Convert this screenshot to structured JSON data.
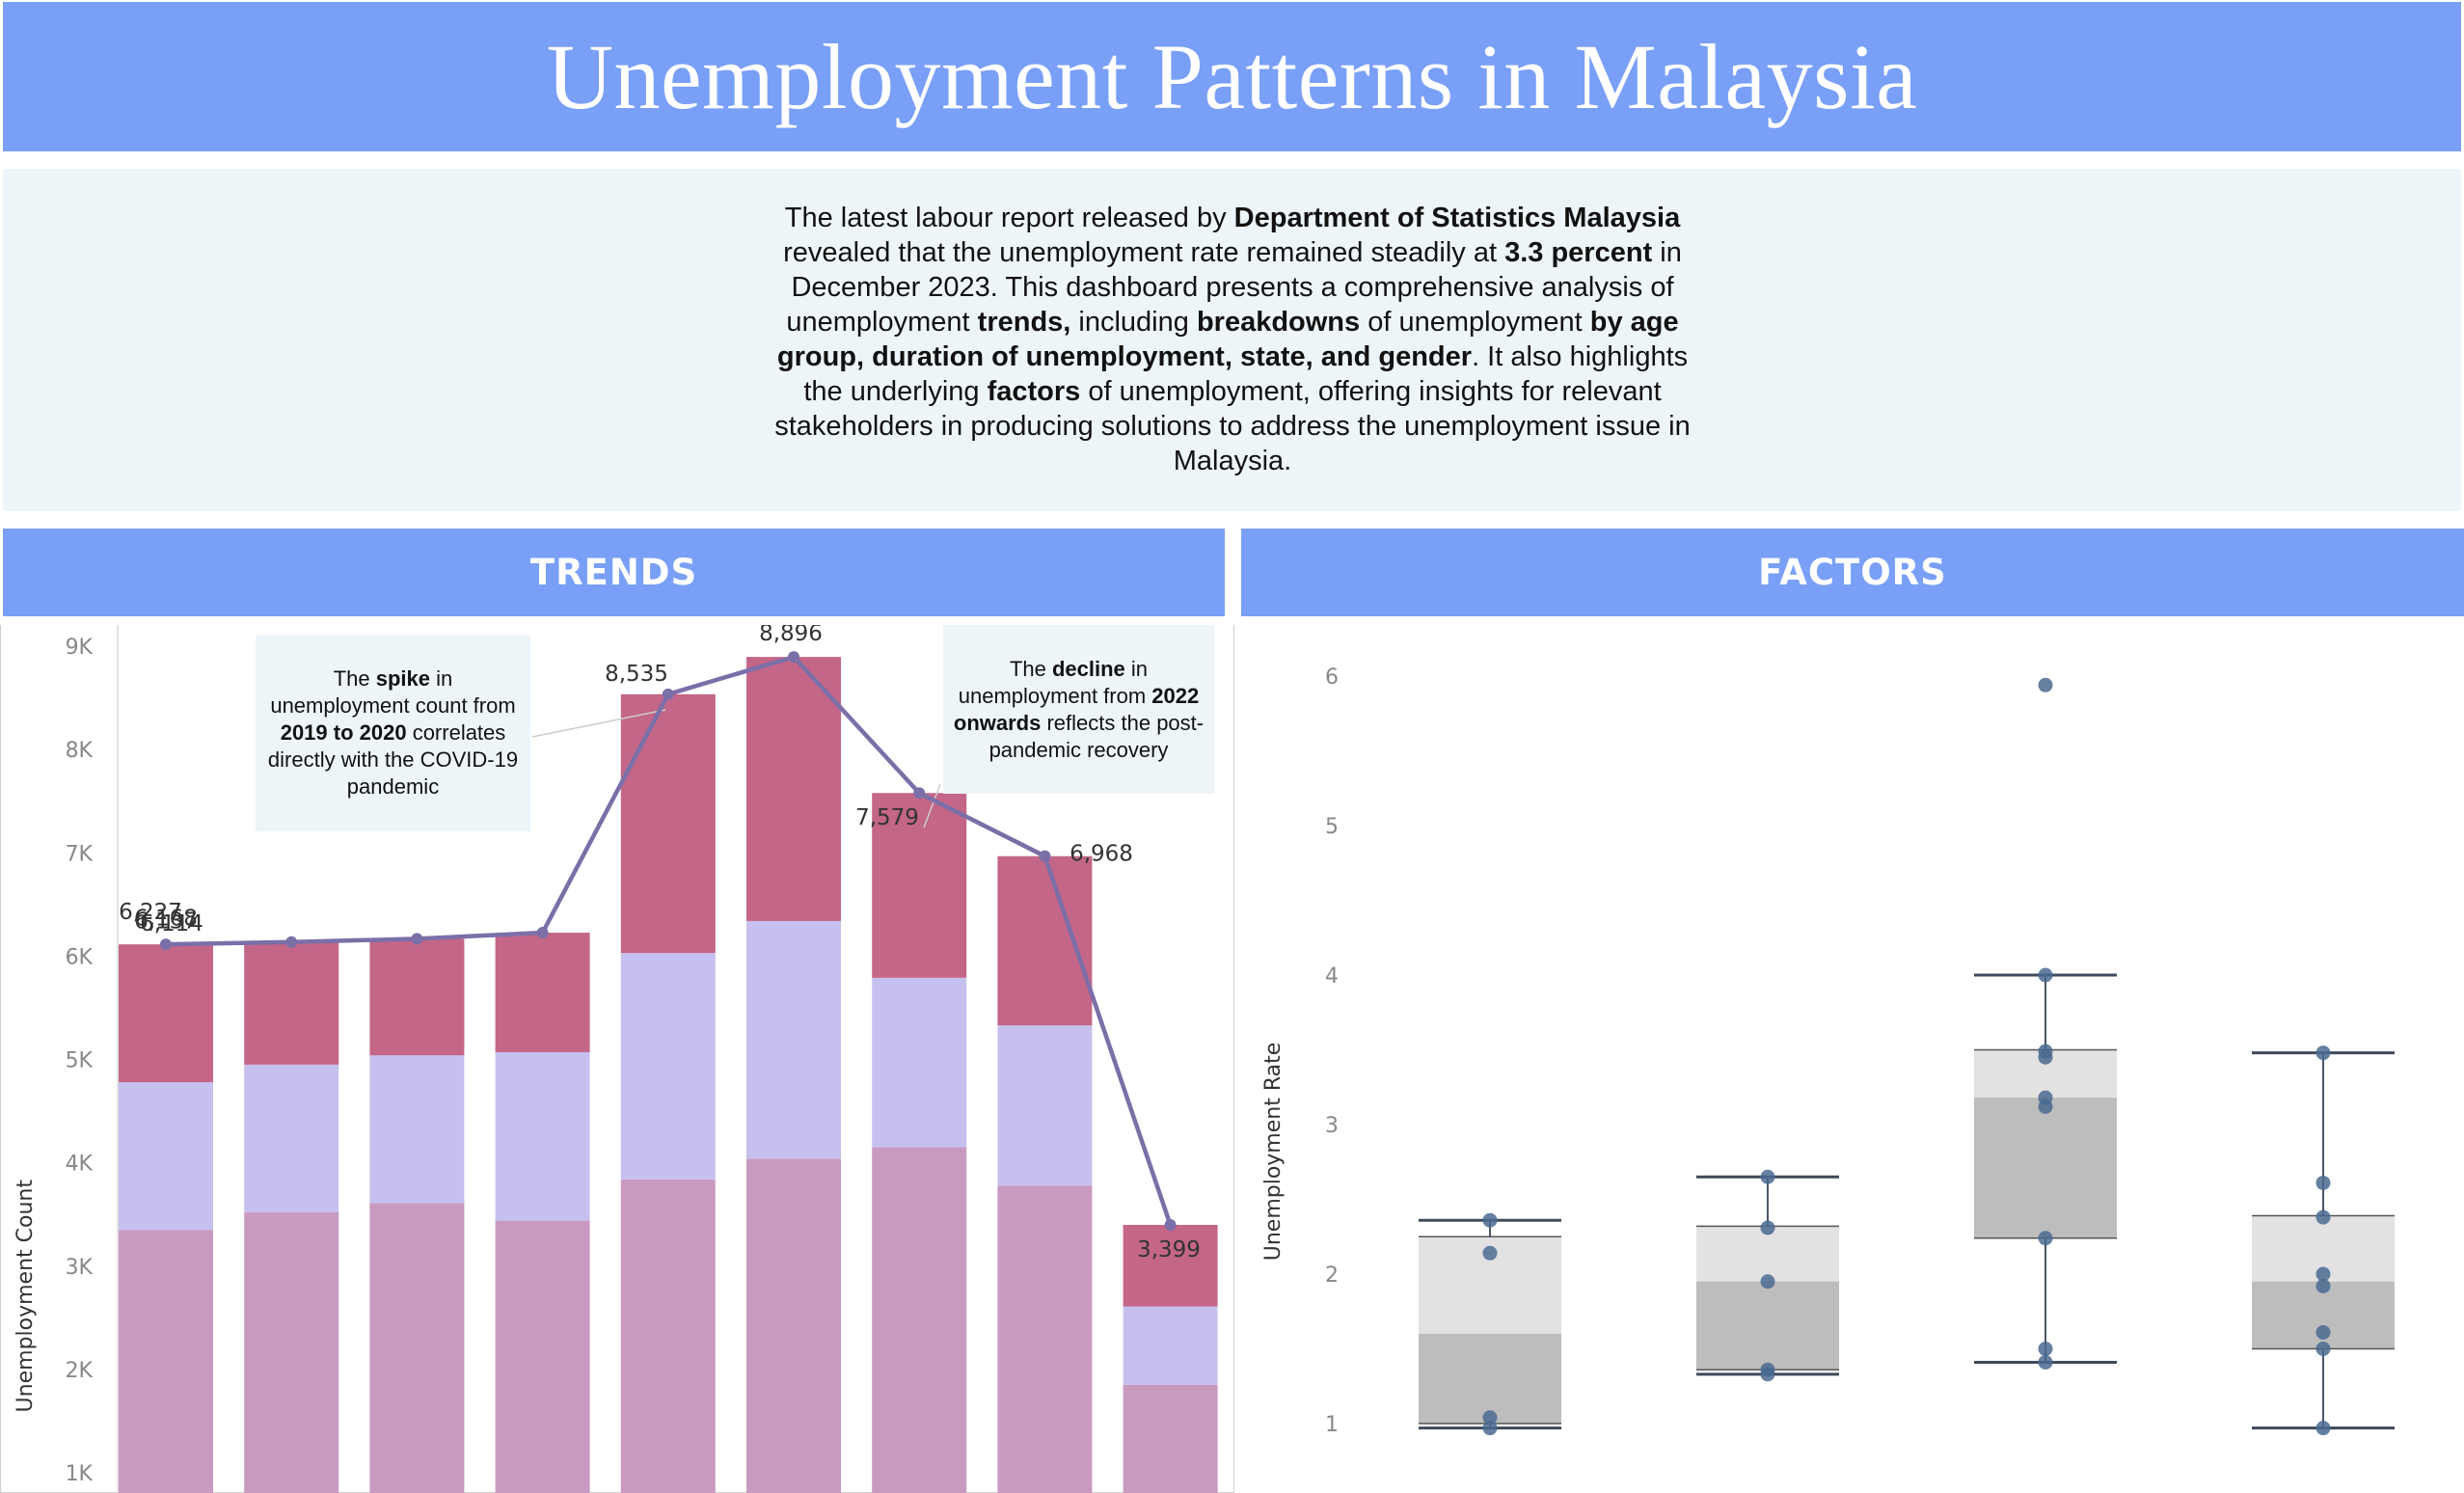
{
  "header": {
    "title": "Unemployment Patterns in Malaysia"
  },
  "intro": {
    "p1": "The latest labour report released by ",
    "b1": "Department of Statistics Malaysia",
    "p2": " revealed that the unemployment rate remained steadily at ",
    "b2": "3.3 percent",
    "p3": " in December 2023. This dashboard presents a comprehensive analysis of unemployment ",
    "b3": "trends,",
    "p4": " including ",
    "b4": "breakdowns",
    "p5": " of unemployment ",
    "b5": "by age group, duration of unemployment, state, and gender",
    "p6": ". It also highlights the underlying ",
    "b6": "factors",
    "p7": " of unemployment, offering insights for relevant stakeholders in producing solutions to address the unemployment issue in Malaysia."
  },
  "sections": {
    "trends": "TRENDS",
    "factors": "FACTORS"
  },
  "notes": {
    "spike": {
      "t1": "The ",
      "b1": "spike",
      "t2": " in unemployment count from ",
      "b2": "2019 to 2020",
      "t3": " correlates directly with the COVID-19 pandemic"
    },
    "decline": {
      "t1": "The ",
      "b1": "decline",
      "t2": " in unemployment from ",
      "b2": "2022 onwards",
      "t3": " reflects the post-pandemic recovery"
    }
  },
  "colors": {
    "bottom": "#c89ac0",
    "middle": "#c6c0ef",
    "top": "#c46688",
    "line": "#7b6fa8",
    "dot": "#4a6a90",
    "box_dark": "#bdbdbd",
    "box_light": "#e2e2e2"
  },
  "chart_data": [
    {
      "type": "bar",
      "ylabel": "Unemployment Count",
      "ylim": [
        1000,
        9300
      ],
      "yticks": [
        "1K",
        "2K",
        "3K",
        "4K",
        "5K",
        "6K",
        "7K",
        "8K",
        "9K"
      ],
      "ytick_values": [
        1000,
        2000,
        3000,
        4000,
        5000,
        6000,
        7000,
        8000,
        9000
      ],
      "series": [
        {
          "values": [
            3350,
            3520,
            3610,
            3440,
            3840,
            4040,
            4150,
            3780,
            1850
          ]
        },
        {
          "values": [
            1430,
            1430,
            1430,
            1630,
            2190,
            2300,
            1640,
            1550,
            760
          ]
        },
        {
          "values": [
            1334,
            1187,
            1128,
            1157,
            2505,
            2556,
            1789,
            1638,
            789
          ]
        }
      ],
      "line_values": [
        6114,
        6137,
        6168,
        6227,
        8535,
        8896,
        7579,
        6968,
        3399
      ],
      "labels": [
        "6,114",
        "6,137",
        "6,168",
        "6,227",
        "8,535",
        "8,896",
        "7,579",
        "6,968",
        "3,399"
      ]
    },
    {
      "type": "box",
      "ylabel": "Unemployment Rate",
      "yticks": [
        "1",
        "2",
        "3",
        "4",
        "5",
        "6"
      ],
      "ytick_values": [
        1,
        2,
        3,
        4,
        5,
        6
      ],
      "ylim": [
        0.9,
        6.25
      ],
      "groups": [
        {
          "min": 0.97,
          "q1": 1.0,
          "median": 1.6,
          "q3": 2.25,
          "max": 2.36,
          "points": [
            0.97,
            1.04,
            2.14,
            2.36
          ]
        },
        {
          "min": 1.33,
          "q1": 1.36,
          "median": 1.95,
          "q3": 2.32,
          "max": 2.65,
          "points": [
            1.33,
            1.36,
            1.95,
            2.31,
            2.65
          ]
        },
        {
          "min": 1.41,
          "q1": 2.24,
          "median": 3.18,
          "q3": 3.5,
          "max": 4.0,
          "points": [
            1.41,
            1.5,
            2.24,
            3.12,
            3.18,
            3.45,
            3.49,
            4.0,
            5.94
          ]
        },
        {
          "min": 0.97,
          "q1": 1.5,
          "median": 1.95,
          "q3": 2.39,
          "max": 3.48,
          "points": [
            0.97,
            1.5,
            1.61,
            1.92,
            2.0,
            2.38,
            2.61,
            3.48
          ]
        }
      ]
    }
  ]
}
